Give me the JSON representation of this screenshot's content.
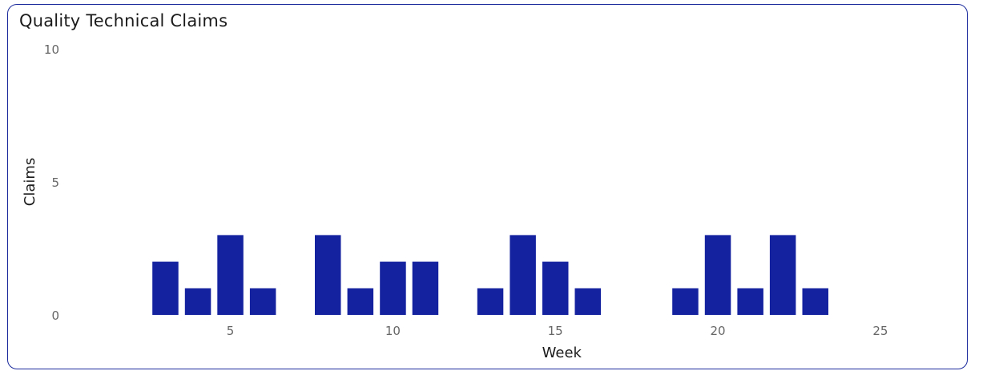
{
  "chart_data": {
    "type": "bar",
    "title": "Quality Technical Claims",
    "xlabel": "Week",
    "ylabel": "Claims",
    "x": [
      3,
      4,
      5,
      6,
      8,
      9,
      10,
      11,
      13,
      14,
      15,
      16,
      19,
      20,
      21,
      22,
      23
    ],
    "values": [
      2,
      1,
      3,
      1,
      3,
      1,
      2,
      2,
      1,
      3,
      2,
      1,
      1,
      3,
      1,
      3,
      1
    ],
    "xlim": [
      0.5,
      27
    ],
    "ylim": [
      0,
      10
    ],
    "x_ticks": [
      5,
      10,
      15,
      20,
      25
    ],
    "y_ticks": [
      0,
      5,
      10
    ],
    "grid": false,
    "bar_color": "#1422a0"
  }
}
